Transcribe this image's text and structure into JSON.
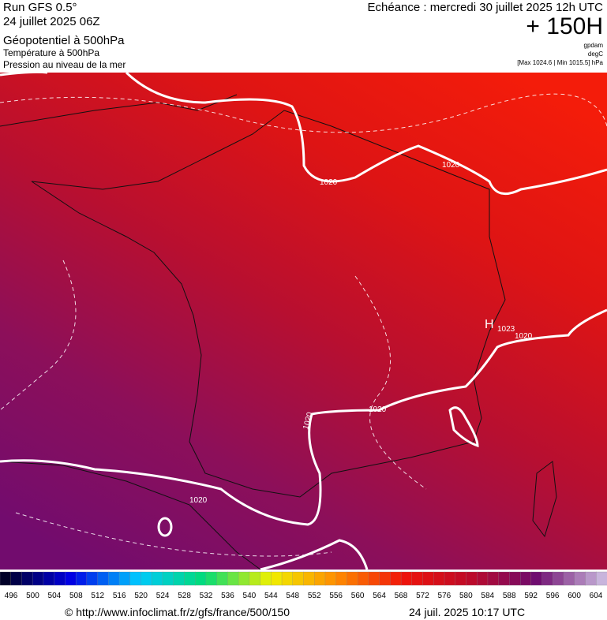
{
  "header": {
    "run": "Run GFS 0.5°",
    "date": "24 juillet 2025 06Z",
    "title": "Géopotentiel à 500hPa",
    "subtitle1": "Température à 500hPa",
    "subtitle2": "Pression au niveau de la mer",
    "echeance": "Echéance : mercredi 30 juillet 2025 12h UTC",
    "lead": "+ 150H",
    "unit1": "gpdam",
    "unit2": "degC",
    "range": "[Max 1024.6 | Min 1015.5] hPa"
  },
  "map": {
    "isobar_labels": [
      "1020",
      "1020",
      "1020",
      "1020",
      "1020",
      "1020"
    ],
    "high": "H",
    "high_value": "1023"
  },
  "colorbar": {
    "ticks": [
      496,
      500,
      504,
      508,
      512,
      516,
      520,
      524,
      528,
      532,
      536,
      540,
      544,
      548,
      552,
      556,
      560,
      564,
      568,
      572,
      576,
      580,
      584,
      588,
      592,
      596,
      600,
      604
    ]
  },
  "footer": {
    "url": "© http://www.infoclimat.fr/z/gfs/france/500/150",
    "timestamp": "24 juil. 2025 10:17 UTC"
  }
}
